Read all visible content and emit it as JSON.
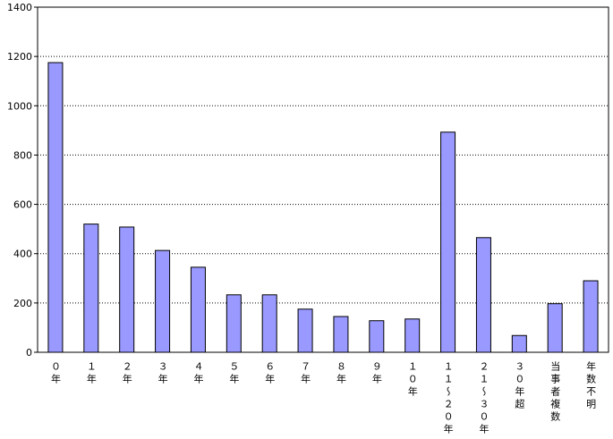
{
  "chart_data": {
    "type": "bar",
    "categories": [
      "０年",
      "１年",
      "２年",
      "３年",
      "４年",
      "５年",
      "６年",
      "７年",
      "８年",
      "９年",
      "１０年",
      "１１～２０年",
      "２１～３０年",
      "３０年超",
      "当事者複数",
      "年数不明"
    ],
    "values": [
      1175,
      520,
      508,
      413,
      345,
      233,
      233,
      175,
      145,
      128,
      135,
      893,
      465,
      68,
      197,
      290
    ],
    "color": "#9999ff",
    "ylim": [
      0,
      1400
    ],
    "yticks": [
      0,
      200,
      400,
      600,
      800,
      1000,
      1200,
      1400
    ],
    "grid": true
  }
}
